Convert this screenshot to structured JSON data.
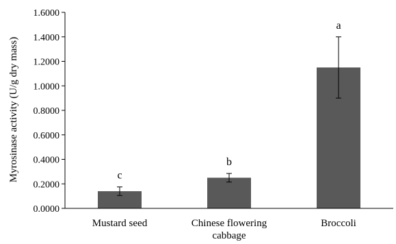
{
  "chart_data": {
    "type": "bar",
    "title": "",
    "xlabel": "",
    "ylabel": "Myrosinase activity (U/g dry mass)",
    "ylim": [
      0,
      1.6
    ],
    "yticks": [
      "0.0000",
      "0.2000",
      "0.4000",
      "0.6000",
      "0.8000",
      "1.0000",
      "1.2000",
      "1.4000",
      "1.6000"
    ],
    "grid": false,
    "bar_color": "#595959",
    "categories": [
      {
        "lines": [
          "Mustard seed"
        ]
      },
      {
        "lines": [
          "Chinese flowering",
          "cabbage"
        ]
      },
      {
        "lines": [
          "Broccoli"
        ]
      }
    ],
    "values": [
      0.14,
      0.25,
      1.15
    ],
    "errors": [
      0.035,
      0.035,
      0.25
    ],
    "annotations": [
      "c",
      "b",
      "a"
    ]
  }
}
